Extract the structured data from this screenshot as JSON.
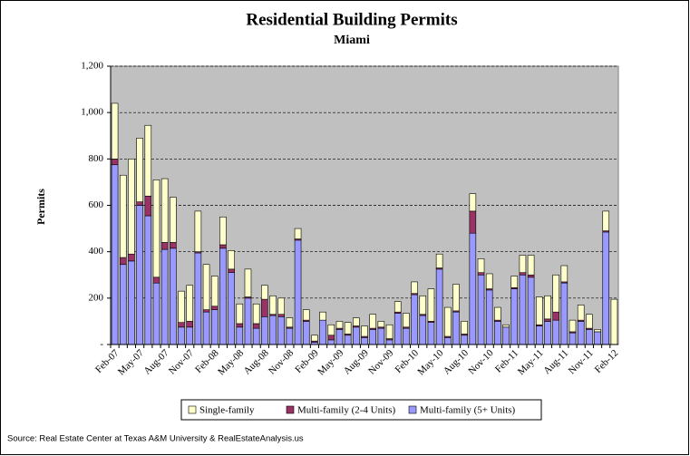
{
  "chart_data": {
    "type": "stacked_bar",
    "title": "Residential Building Permits",
    "subtitle": "Miami",
    "y_label": "Permits",
    "source": "Source: Real Estate Center at Texas A&M University & RealEstateAnalysis.us",
    "categories": [
      "Feb-07",
      null,
      null,
      "May-07",
      null,
      null,
      "Aug-07",
      null,
      null,
      "Nov-07",
      null,
      null,
      "Feb-08",
      null,
      null,
      "May-08",
      null,
      null,
      "Aug-08",
      null,
      null,
      "Nov-08",
      null,
      null,
      "Feb-09",
      null,
      null,
      "May-09",
      null,
      null,
      "Aug-09",
      null,
      null,
      "Nov-09",
      null,
      null,
      "Feb-10",
      null,
      null,
      "May-10",
      null,
      null,
      "Aug-10",
      null,
      null,
      "Nov-10",
      null,
      null,
      "Feb-11",
      null,
      null,
      "May-11",
      null,
      null,
      "Aug-11",
      null,
      null,
      "Nov-11",
      null,
      null,
      "Feb-12"
    ],
    "series": [
      {
        "name": "Single-family",
        "color": "#ffffcc",
        "values": [
          240,
          355,
          410,
          275,
          305,
          420,
          275,
          195,
          135,
          155,
          175,
          195,
          130,
          120,
          80,
          85,
          120,
          85,
          60,
          80,
          70,
          40,
          45,
          45,
          25,
          35,
          45,
          30,
          50,
          35,
          45,
          60,
          25,
          60,
          45,
          60,
          50,
          80,
          140,
          60,
          125,
          115,
          55,
          75,
          60,
          65,
          55,
          10,
          50,
          75,
          85,
          120,
          100,
          160,
          70,
          50,
          65,
          60,
          10,
          85,
          195
        ]
      },
      {
        "name": "Multi-family (2-4 Units)",
        "color": "#993366",
        "values": [
          25,
          30,
          30,
          15,
          85,
          25,
          30,
          25,
          20,
          25,
          5,
          10,
          15,
          15,
          15,
          15,
          5,
          20,
          75,
          5,
          10,
          5,
          5,
          5,
          5,
          0,
          20,
          5,
          5,
          5,
          5,
          5,
          5,
          5,
          5,
          5,
          5,
          5,
          5,
          5,
          5,
          5,
          5,
          95,
          10,
          5,
          5,
          0,
          5,
          10,
          10,
          5,
          10,
          35,
          5,
          5,
          5,
          5,
          0,
          5,
          0
        ]
      },
      {
        "name": "Multi-family (5+ Units)",
        "color": "#9999ff",
        "values": [
          775,
          345,
          360,
          600,
          555,
          265,
          410,
          415,
          75,
          75,
          395,
          140,
          150,
          415,
          310,
          75,
          200,
          70,
          120,
          125,
          120,
          70,
          450,
          100,
          10,
          105,
          20,
          65,
          40,
          75,
          30,
          65,
          70,
          20,
          135,
          70,
          215,
          125,
          95,
          325,
          30,
          140,
          40,
          480,
          300,
          235,
          100,
          75,
          240,
          300,
          290,
          80,
          100,
          105,
          265,
          50,
          100,
          65,
          55,
          485,
          0
        ]
      }
    ],
    "ylim": [
      0,
      1200
    ],
    "yticks": [
      {
        "value": 0,
        "label": "-"
      },
      200,
      400,
      600,
      800,
      {
        "value": 1000,
        "label": "1,000"
      },
      {
        "value": 1200,
        "label": "1,200"
      }
    ],
    "grid": true,
    "legend": "bottom",
    "plot_background": "#c0c0c0"
  }
}
